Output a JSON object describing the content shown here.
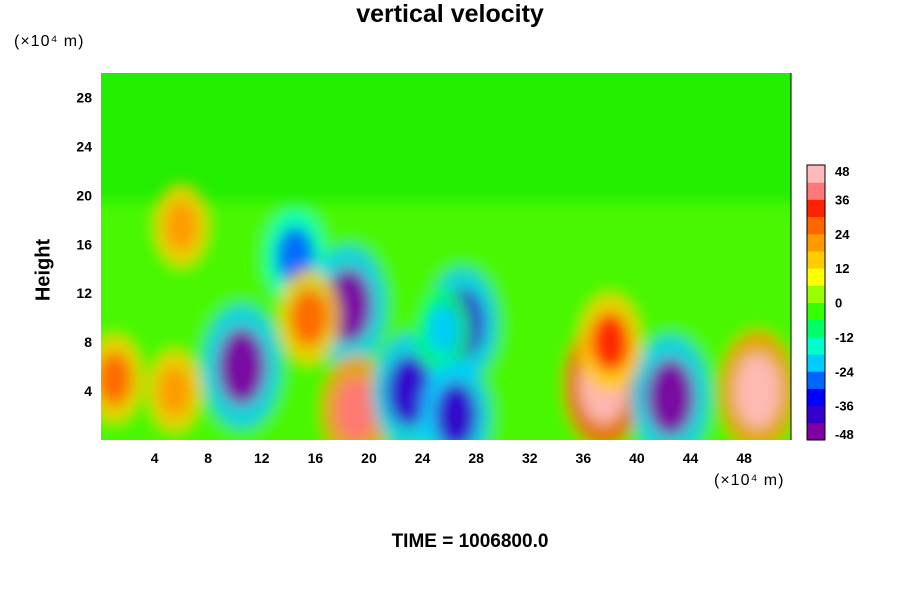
{
  "chart_data": {
    "type": "heatmap",
    "title": "vertical velocity",
    "ylabel": "Height",
    "xlabel": "",
    "x_unit": "(×10⁴ m)",
    "y_unit": "(×10⁴ m)",
    "xlim": [
      0,
      51.5
    ],
    "ylim": [
      0,
      30
    ],
    "x_ticks": [
      4,
      8,
      12,
      16,
      20,
      24,
      28,
      32,
      36,
      40,
      44,
      48
    ],
    "y_ticks": [
      4,
      8,
      12,
      16,
      20,
      24,
      28
    ],
    "colorbar": {
      "range": [
        -48,
        48
      ],
      "ticks": [
        48,
        36,
        24,
        12,
        0,
        -12,
        -24,
        -36,
        -48
      ],
      "colors": [
        "#7f00a0",
        "#3300cc",
        "#0000ff",
        "#0066ff",
        "#00ccff",
        "#00ffcc",
        "#00ff66",
        "#33ff00",
        "#99ff00",
        "#ffff00",
        "#ffcc00",
        "#ff9900",
        "#ff6600",
        "#ff2200",
        "#ff7777",
        "#ffbbbb"
      ]
    },
    "features": [
      {
        "x": 10.5,
        "y": 6,
        "value": -48
      },
      {
        "x": 14.5,
        "y": 15,
        "value": -30
      },
      {
        "x": 18.5,
        "y": 11,
        "value": -45
      },
      {
        "x": 15.5,
        "y": 10,
        "value": 28
      },
      {
        "x": 19,
        "y": 2.5,
        "value": 36
      },
      {
        "x": 23,
        "y": 4,
        "value": -42
      },
      {
        "x": 27,
        "y": 9.5,
        "value": -40
      },
      {
        "x": 25.5,
        "y": 9,
        "value": -20
      },
      {
        "x": 26.5,
        "y": 2,
        "value": -38
      },
      {
        "x": 1,
        "y": 5,
        "value": 24
      },
      {
        "x": 5.5,
        "y": 4,
        "value": 20
      },
      {
        "x": 37.5,
        "y": 4.5,
        "value": 48
      },
      {
        "x": 42.5,
        "y": 3.5,
        "value": -48
      },
      {
        "x": 49,
        "y": 4,
        "value": 45
      },
      {
        "x": 38,
        "y": 8,
        "value": 30
      },
      {
        "x": 6,
        "y": 17.5,
        "value": 20
      }
    ]
  },
  "footer": {
    "time_label": "TIME = 1006800.0"
  }
}
